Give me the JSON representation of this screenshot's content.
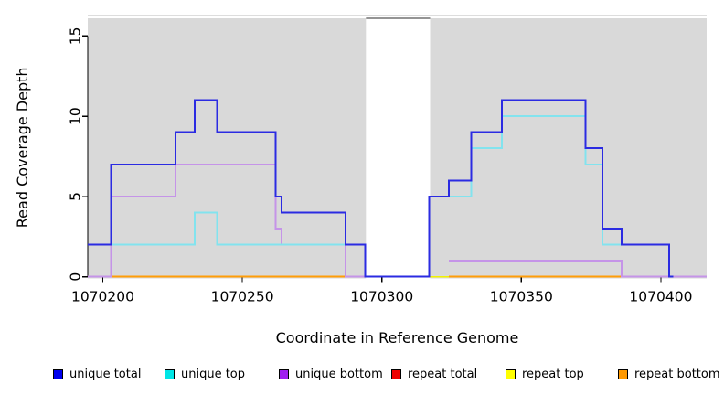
{
  "figure": {
    "background": "#ffffff",
    "plot_background": "#d9d9d9",
    "gap_background": "#ffffff",
    "gap_top_line_color": "#949494",
    "upper_faint_line_color": "#d2d2d2",
    "axis_color": "#000000"
  },
  "chart_data": {
    "type": "line",
    "subtype": "step-coverage",
    "title": "",
    "xlabel": "Coordinate in Reference Genome",
    "ylabel": "Read Coverage Depth",
    "xlim": [
      1070194.6,
      1070416.4
    ],
    "ylim": [
      0,
      16.1
    ],
    "x_ticks": [
      1070200,
      1070250,
      1070300,
      1070350,
      1070400
    ],
    "y_ticks": [
      0,
      5,
      10,
      15
    ],
    "grid": "off",
    "legend_position": "bottom",
    "background_blocks": [
      {
        "start": 1070194.6,
        "end": 1070294.3
      },
      {
        "start": 1070317.3,
        "end": 1070416.4
      }
    ],
    "gap": {
      "start": 1070294.3,
      "end": 1070317.3
    },
    "series": [
      {
        "name": "repeat total",
        "line_color": "#c9454e",
        "line_width": 1.6,
        "blocks": [
          {
            "points": [
              [
                1070194.6,
                0
              ]
            ],
            "xend": 1070416.4
          }
        ]
      },
      {
        "name": "repeat top",
        "line_color": "#f2f200",
        "line_width": 1.6,
        "blocks": [
          {
            "points": [
              [
                1070203,
                0
              ]
            ],
            "xend": 1070402
          }
        ]
      },
      {
        "name": "repeat bottom",
        "line_color": "#ff9d08",
        "line_width": 2,
        "blocks": [
          {
            "points": [
              [
                1070203,
                0
              ]
            ],
            "xend": 1070287
          },
          {
            "points": [
              [
                1070324,
                0
              ]
            ],
            "xend": 1070402
          }
        ]
      },
      {
        "name": "unique bottom",
        "line_color": "#c594e8",
        "line_width": 2,
        "blocks": [
          {
            "points": [
              [
                1070194.6,
                0
              ],
              [
                1070203,
                5
              ],
              [
                1070226,
                7
              ],
              [
                1070262,
                3
              ],
              [
                1070264,
                2
              ],
              [
                1070287,
                0
              ]
            ],
            "xend": 1070294.3
          },
          {
            "points": [
              [
                1070324,
                1
              ],
              [
                1070386,
                0
              ]
            ],
            "xend": 1070416.4
          }
        ]
      },
      {
        "name": "unique top",
        "line_color": "#82e3ee",
        "line_width": 2,
        "blocks": [
          {
            "points": [
              [
                1070194.6,
                2
              ],
              [
                1070233,
                4
              ],
              [
                1070241,
                2
              ],
              [
                1070294,
                0
              ]
            ],
            "xend": 1070295
          },
          {
            "points": [
              [
                1070317,
                5
              ],
              [
                1070332,
                8
              ],
              [
                1070343,
                10
              ],
              [
                1070373,
                7
              ],
              [
                1070379,
                2
              ],
              [
                1070403,
                0
              ]
            ],
            "xend": 1070404
          }
        ]
      },
      {
        "name": "unique total",
        "line_color": "#2b2be2",
        "line_width": 2,
        "blocks": [
          {
            "points": [
              [
                1070194.6,
                2
              ],
              [
                1070203,
                7
              ],
              [
                1070226,
                9
              ],
              [
                1070233,
                11
              ],
              [
                1070241,
                9
              ],
              [
                1070262,
                5
              ],
              [
                1070264,
                4
              ],
              [
                1070287,
                2
              ],
              [
                1070294,
                0
              ],
              [
                1070317,
                5
              ],
              [
                1070324,
                6
              ],
              [
                1070332,
                9
              ],
              [
                1070343,
                11
              ],
              [
                1070373,
                8
              ],
              [
                1070379,
                3
              ],
              [
                1070386,
                2
              ],
              [
                1070403,
                0
              ]
            ],
            "xend": 1070404.5
          }
        ]
      }
    ]
  },
  "legend": {
    "items": [
      {
        "label": "unique total",
        "color": "#0000ee"
      },
      {
        "label": "unique top",
        "color": "#00e6e6"
      },
      {
        "label": "unique bottom",
        "color": "#a020f0"
      },
      {
        "label": "repeat total",
        "color": "#ee0000"
      },
      {
        "label": "repeat top",
        "color": "#ffff00"
      },
      {
        "label": "repeat bottom",
        "color": "#ff9900"
      }
    ]
  }
}
